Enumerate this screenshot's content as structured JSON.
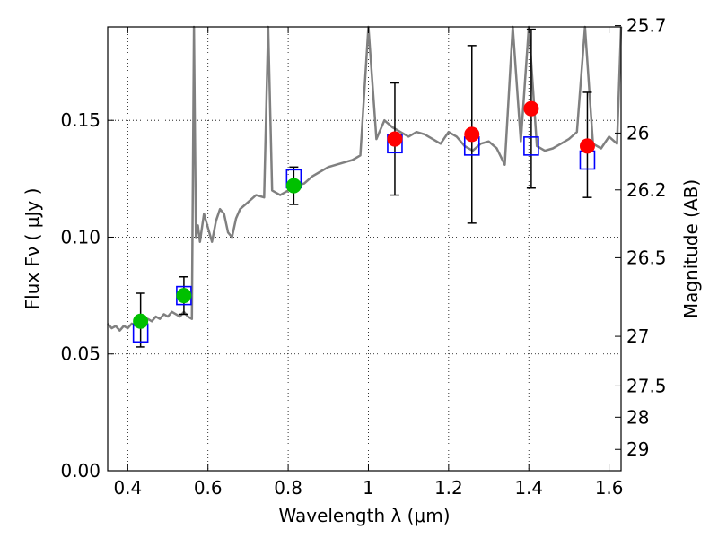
{
  "chart_data": {
    "type": "scatter",
    "title": "",
    "xlabel": "Wavelength  λ (μm)",
    "ylabel": "Flux  Fν  ( μJy )",
    "y2label": "Magnitude (AB)",
    "xlim": [
      0.35,
      1.63
    ],
    "ylim": [
      0.0,
      0.19
    ],
    "grid": true,
    "x_ticks": [
      "0.4",
      "0.6",
      "0.8",
      "1",
      "1.2",
      "1.4",
      "1.6"
    ],
    "x_tick_values": [
      0.4,
      0.6,
      0.8,
      1.0,
      1.2,
      1.4,
      1.6
    ],
    "y_ticks": [
      "0.00",
      "0.05",
      "0.10",
      "0.15"
    ],
    "y_tick_values": [
      0.0,
      0.05,
      0.1,
      0.15
    ],
    "y2_ticks": [
      "25.7",
      "26",
      "26.2",
      "26.5",
      "27",
      "27.5",
      "28",
      "29"
    ],
    "y2_tick_values": [
      25.7,
      26.0,
      26.2,
      26.5,
      27.0,
      27.5,
      28.0,
      29.0
    ],
    "colors": {
      "spectrum": "#808080",
      "model_photometry": "#0000ff",
      "green_points": "#00c000",
      "red_points": "#ff0000",
      "error_bars": "#000000"
    },
    "model_photometry": [
      {
        "x": 0.432,
        "y": 0.059
      },
      {
        "x": 0.54,
        "y": 0.075
      },
      {
        "x": 0.814,
        "y": 0.125
      },
      {
        "x": 1.066,
        "y": 0.14
      },
      {
        "x": 1.258,
        "y": 0.139
      },
      {
        "x": 1.406,
        "y": 0.139
      },
      {
        "x": 1.546,
        "y": 0.133
      }
    ],
    "observed_points": [
      {
        "x": 0.432,
        "y": 0.064,
        "err_low": 0.053,
        "err_high": 0.076,
        "color": "green"
      },
      {
        "x": 0.54,
        "y": 0.075,
        "err_low": 0.067,
        "err_high": 0.083,
        "color": "green"
      },
      {
        "x": 0.814,
        "y": 0.122,
        "err_low": 0.114,
        "err_high": 0.13,
        "color": "green"
      },
      {
        "x": 1.066,
        "y": 0.142,
        "err_low": 0.118,
        "err_high": 0.166,
        "color": "red"
      },
      {
        "x": 1.258,
        "y": 0.144,
        "err_low": 0.106,
        "err_high": 0.182,
        "color": "red"
      },
      {
        "x": 1.406,
        "y": 0.155,
        "err_low": 0.121,
        "err_high": 0.189,
        "color": "red"
      },
      {
        "x": 1.546,
        "y": 0.139,
        "err_low": 0.117,
        "err_high": 0.162,
        "color": "red"
      }
    ],
    "spectrum": {
      "x": [
        0.35,
        0.36,
        0.37,
        0.38,
        0.39,
        0.4,
        0.41,
        0.42,
        0.43,
        0.44,
        0.45,
        0.46,
        0.47,
        0.48,
        0.49,
        0.5,
        0.51,
        0.52,
        0.53,
        0.54,
        0.55,
        0.56,
        0.565,
        0.57,
        0.575,
        0.58,
        0.585,
        0.59,
        0.6,
        0.61,
        0.62,
        0.63,
        0.64,
        0.65,
        0.66,
        0.67,
        0.68,
        0.7,
        0.72,
        0.74,
        0.75,
        0.76,
        0.78,
        0.8,
        0.82,
        0.84,
        0.86,
        0.88,
        0.9,
        0.92,
        0.94,
        0.96,
        0.98,
        1.0,
        1.02,
        1.04,
        1.06,
        1.08,
        1.1,
        1.12,
        1.14,
        1.16,
        1.18,
        1.2,
        1.22,
        1.24,
        1.26,
        1.28,
        1.3,
        1.32,
        1.34,
        1.36,
        1.38,
        1.4,
        1.42,
        1.44,
        1.46,
        1.48,
        1.5,
        1.52,
        1.54,
        1.56,
        1.58,
        1.6,
        1.62,
        1.63
      ],
      "y": [
        0.063,
        0.061,
        0.062,
        0.06,
        0.062,
        0.061,
        0.063,
        0.062,
        0.064,
        0.063,
        0.065,
        0.064,
        0.066,
        0.065,
        0.067,
        0.066,
        0.068,
        0.067,
        0.066,
        0.068,
        0.066,
        0.065,
        0.19,
        0.1,
        0.105,
        0.098,
        0.104,
        0.11,
        0.104,
        0.098,
        0.107,
        0.112,
        0.11,
        0.102,
        0.1,
        0.108,
        0.112,
        0.115,
        0.118,
        0.117,
        0.19,
        0.12,
        0.118,
        0.12,
        0.122,
        0.123,
        0.126,
        0.128,
        0.13,
        0.131,
        0.132,
        0.133,
        0.135,
        0.19,
        0.142,
        0.15,
        0.147,
        0.145,
        0.143,
        0.145,
        0.144,
        0.142,
        0.14,
        0.145,
        0.143,
        0.139,
        0.137,
        0.14,
        0.141,
        0.138,
        0.131,
        0.19,
        0.141,
        0.19,
        0.139,
        0.137,
        0.138,
        0.14,
        0.142,
        0.145,
        0.19,
        0.14,
        0.138,
        0.143,
        0.14,
        0.19
      ]
    }
  }
}
